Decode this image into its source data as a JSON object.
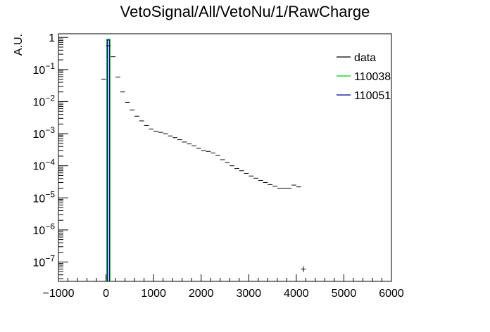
{
  "chart_data": {
    "type": "histogram",
    "title": "VetoSignal/All/VetoNu/1/RawCharge",
    "xlabel": "",
    "ylabel": "A.U.",
    "xlim": [
      -1000,
      6000
    ],
    "ylim": [
      2.5e-08,
      1.3
    ],
    "yscale": "log",
    "grid": false,
    "legend_position": "top-right",
    "x_ticks": [
      {
        "value": -1000,
        "label": "−1000"
      },
      {
        "value": 0,
        "label": "0"
      },
      {
        "value": 1000,
        "label": "1000"
      },
      {
        "value": 2000,
        "label": "2000"
      },
      {
        "value": 3000,
        "label": "3000"
      },
      {
        "value": 4000,
        "label": "4000"
      },
      {
        "value": 5000,
        "label": "5000"
      },
      {
        "value": 6000,
        "label": "6000"
      }
    ],
    "y_ticks": [
      {
        "value": 1,
        "base": "1",
        "exp": ""
      },
      {
        "value": 0.1,
        "base": "10",
        "exp": "−1"
      },
      {
        "value": 0.01,
        "base": "10",
        "exp": "−2"
      },
      {
        "value": 0.001,
        "base": "10",
        "exp": "−3"
      },
      {
        "value": 0.0001,
        "base": "10",
        "exp": "−4"
      },
      {
        "value": 1e-05,
        "base": "10",
        "exp": "−5"
      },
      {
        "value": 1e-06,
        "base": "10",
        "exp": "−6"
      },
      {
        "value": 1e-07,
        "base": "10",
        "exp": "−7"
      }
    ],
    "legend": [
      {
        "label": "data",
        "color": "#000000"
      },
      {
        "label": "110038",
        "color": "#00cc00"
      },
      {
        "label": "110051",
        "color": "#000099"
      }
    ],
    "series": [
      {
        "name": "data",
        "color": "#000000",
        "style": "markers",
        "bin_width": 100,
        "x": [
          -50,
          50,
          150,
          250,
          350,
          450,
          550,
          650,
          750,
          850,
          950,
          1050,
          1150,
          1250,
          1350,
          1450,
          1550,
          1650,
          1750,
          1850,
          1950,
          2050,
          2150,
          2250,
          2350,
          2450,
          2550,
          2650,
          2750,
          2850,
          2950,
          3050,
          3150,
          3250,
          3350,
          3450,
          3550,
          3650,
          3750,
          3850,
          3950,
          4050,
          4150
        ],
        "y": [
          0.05,
          0.55,
          0.25,
          0.058,
          0.02,
          0.0095,
          0.0055,
          0.0035,
          0.0025,
          0.0018,
          0.0014,
          0.0012,
          0.0011,
          0.001,
          0.00085,
          0.00075,
          0.00065,
          0.00055,
          0.00048,
          0.00042,
          0.00035,
          0.0003,
          0.00028,
          0.00025,
          0.00021,
          0.000155,
          0.000125,
          0.0001,
          8.2e-05,
          7e-05,
          5.8e-05,
          4.8e-05,
          4.1e-05,
          3.5e-05,
          3e-05,
          2.6e-05,
          2.3e-05,
          2e-05,
          2e-05,
          2e-05,
          2.5e-05,
          2.2e-05,
          6e-08
        ]
      },
      {
        "name": "110038",
        "color": "#00cc00",
        "style": "histogram",
        "bins": [
          {
            "x0": 0,
            "x1": 100,
            "y": 0.92
          }
        ]
      },
      {
        "name": "110051",
        "color": "#000099",
        "style": "histogram",
        "bins": [
          {
            "x0": 0,
            "x1": 100,
            "y": 0.92
          }
        ]
      }
    ]
  }
}
